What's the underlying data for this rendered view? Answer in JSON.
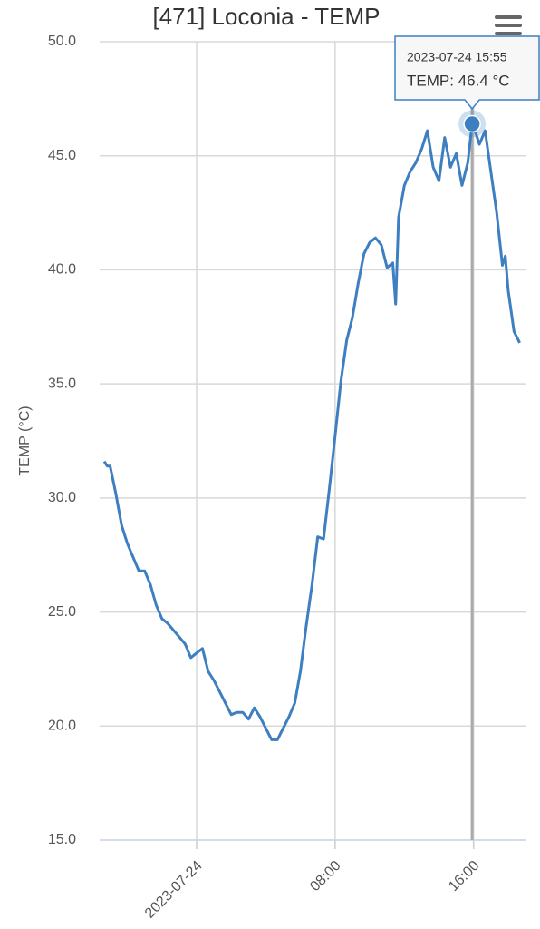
{
  "chart_data": {
    "type": "line",
    "title": "[471] Loconia - TEMP",
    "y_label": "TEMP (°C)",
    "color": "#3d7fc1",
    "grid": true,
    "x": [
      "2023-07-23 18:40",
      "2023-07-23 18:50",
      "2023-07-23 19:00",
      "2023-07-23 19:20",
      "2023-07-23 19:40",
      "2023-07-23 20:00",
      "2023-07-23 20:20",
      "2023-07-23 20:40",
      "2023-07-23 21:00",
      "2023-07-23 21:20",
      "2023-07-23 21:40",
      "2023-07-23 22:00",
      "2023-07-23 22:20",
      "2023-07-23 22:40",
      "2023-07-23 23:00",
      "2023-07-23 23:20",
      "2023-07-23 23:40",
      "2023-07-24 00:00",
      "2023-07-24 00:20",
      "2023-07-24 00:40",
      "2023-07-24 01:00",
      "2023-07-24 01:20",
      "2023-07-24 01:40",
      "2023-07-24 02:00",
      "2023-07-24 02:20",
      "2023-07-24 02:40",
      "2023-07-24 03:00",
      "2023-07-24 03:20",
      "2023-07-24 03:40",
      "2023-07-24 04:00",
      "2023-07-24 04:20",
      "2023-07-24 04:40",
      "2023-07-24 05:00",
      "2023-07-24 05:20",
      "2023-07-24 05:40",
      "2023-07-24 06:00",
      "2023-07-24 06:20",
      "2023-07-24 06:40",
      "2023-07-24 07:00",
      "2023-07-24 07:20",
      "2023-07-24 07:40",
      "2023-07-24 08:00",
      "2023-07-24 08:20",
      "2023-07-24 08:40",
      "2023-07-24 09:00",
      "2023-07-24 09:20",
      "2023-07-24 09:40",
      "2023-07-24 10:00",
      "2023-07-24 10:20",
      "2023-07-24 10:40",
      "2023-07-24 11:00",
      "2023-07-24 11:20",
      "2023-07-24 11:30",
      "2023-07-24 11:40",
      "2023-07-24 12:00",
      "2023-07-24 12:20",
      "2023-07-24 12:40",
      "2023-07-24 13:00",
      "2023-07-24 13:20",
      "2023-07-24 13:40",
      "2023-07-24 14:00",
      "2023-07-24 14:20",
      "2023-07-24 14:40",
      "2023-07-24 15:00",
      "2023-07-24 15:20",
      "2023-07-24 15:40",
      "2023-07-24 15:55",
      "2023-07-24 16:05",
      "2023-07-24 16:20",
      "2023-07-24 16:40",
      "2023-07-24 17:00",
      "2023-07-24 17:20",
      "2023-07-24 17:40",
      "2023-07-24 17:50",
      "2023-07-24 18:00",
      "2023-07-24 18:20",
      "2023-07-24 18:40"
    ],
    "values": [
      31.6,
      31.4,
      31.4,
      30.2,
      28.8,
      28.0,
      27.4,
      26.8,
      26.8,
      26.2,
      25.3,
      24.7,
      24.5,
      24.2,
      23.9,
      23.6,
      23.0,
      23.2,
      23.4,
      22.4,
      22.0,
      21.5,
      21.0,
      20.5,
      20.6,
      20.6,
      20.3,
      20.8,
      20.4,
      19.9,
      19.4,
      19.4,
      19.9,
      20.4,
      21.0,
      22.4,
      24.4,
      26.2,
      28.3,
      28.2,
      30.4,
      32.7,
      35.1,
      36.9,
      37.9,
      39.4,
      40.7,
      41.2,
      41.4,
      41.1,
      40.1,
      40.3,
      38.5,
      42.3,
      43.7,
      44.3,
      44.7,
      45.3,
      46.1,
      44.5,
      43.9,
      45.8,
      44.5,
      45.1,
      43.7,
      44.7,
      46.4,
      46.1,
      45.5,
      46.1,
      44.3,
      42.5,
      40.2,
      40.6,
      39.1,
      37.3,
      36.8
    ],
    "xlim": [
      "2023-07-23 18:24",
      "2023-07-24 19:00"
    ],
    "xticks": [
      {
        "value": "2023-07-24 00:00",
        "label": "2023-07-24"
      },
      {
        "value": "2023-07-24 08:00",
        "label": "08:00"
      },
      {
        "value": "2023-07-24 16:00",
        "label": "16:00"
      }
    ],
    "ylim": [
      15,
      50
    ],
    "yticks": [
      {
        "value": 15,
        "label": "15.0"
      },
      {
        "value": 20,
        "label": "20.0"
      },
      {
        "value": 25,
        "label": "25.0"
      },
      {
        "value": 30,
        "label": "30.0"
      },
      {
        "value": 35,
        "label": "35.0"
      },
      {
        "value": 40,
        "label": "40.0"
      },
      {
        "value": 45,
        "label": "45.0"
      },
      {
        "value": 50,
        "label": "50.0"
      }
    ],
    "tooltip": {
      "x": "2023-07-24 15:55",
      "text": "TEMP: 46.4 °C"
    }
  }
}
